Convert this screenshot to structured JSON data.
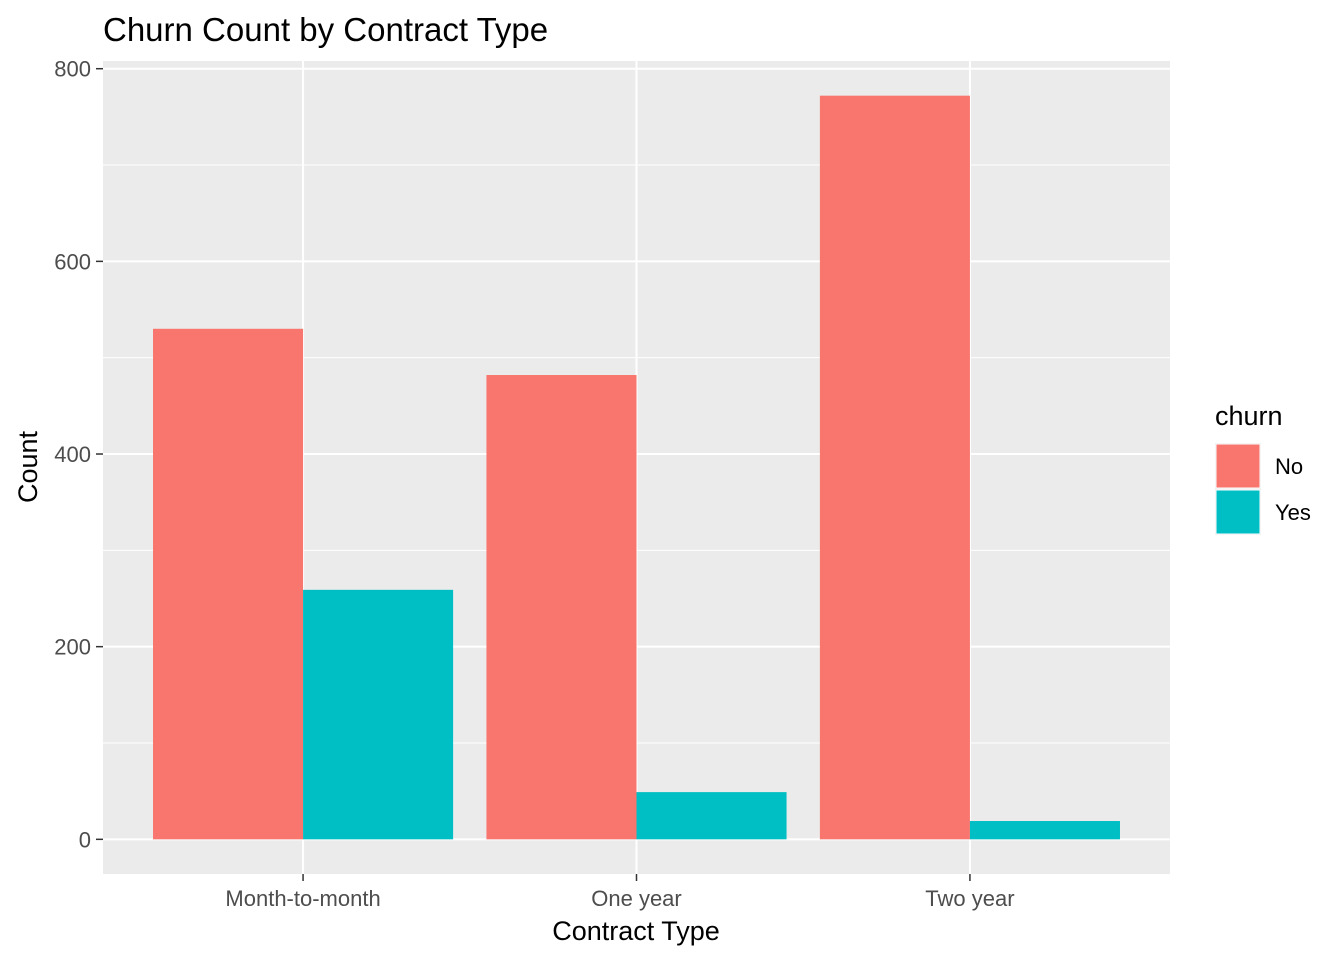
{
  "chart_data": {
    "type": "bar",
    "title": "Churn Count by Contract Type",
    "xlabel": "Contract Type",
    "ylabel": "Count",
    "categories": [
      "Month-to-month",
      "One year",
      "Two year"
    ],
    "series": [
      {
        "name": "No",
        "values": [
          530,
          482,
          772
        ],
        "color": "#F8766D"
      },
      {
        "name": "Yes",
        "values": [
          259,
          49,
          19
        ],
        "color": "#00BFC4"
      }
    ],
    "ylim": [
      -36,
      808
    ],
    "yticks": [
      0,
      200,
      400,
      600,
      800
    ],
    "grid": true,
    "background": "#EBEBEB",
    "legend": {
      "title": "churn",
      "placement": "right"
    }
  }
}
